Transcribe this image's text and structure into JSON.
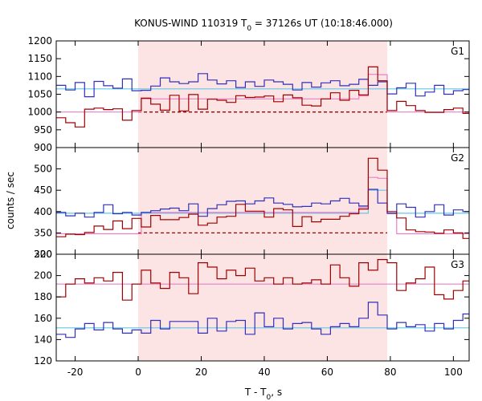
{
  "chart_data": {
    "type": "line",
    "title": {
      "prefix": "KONUS-WIND 110319 T",
      "sub": "0",
      "suffix": " = 37126s UT (10:18:46.000)"
    },
    "xlabel": {
      "prefix": "T - T",
      "sub": "0",
      "suffix": ", s"
    },
    "ylabel": "counts / sec",
    "xlim": [
      -26,
      105
    ],
    "x_ticks": [
      -20,
      0,
      20,
      40,
      60,
      80,
      100
    ],
    "shaded_interval": [
      0,
      79
    ],
    "colors": {
      "blue": "#3030b8",
      "red": "#a00000",
      "pink": "#e880c8",
      "cyan": "#60c8e8",
      "shade": "#fde4e4"
    },
    "panels": [
      {
        "name": "G1",
        "ylim": [
          900,
          1200
        ],
        "y_ticks": [
          900,
          950,
          1000,
          1050,
          1100,
          1150,
          1200
        ],
        "x_edges": [
          -26,
          -23,
          -20,
          -17,
          -14,
          -11,
          -8,
          -5,
          -2,
          1,
          4,
          7,
          10,
          13,
          16,
          19,
          22,
          25,
          28,
          31,
          34,
          37,
          40,
          43,
          46,
          49,
          52,
          55,
          58,
          61,
          64,
          67,
          70,
          73,
          76,
          79,
          82,
          85,
          88,
          91,
          94,
          97,
          100,
          103,
          105
        ],
        "series": [
          {
            "color": "blue",
            "values": [
              1075,
              1062,
              1083,
              1043,
              1086,
              1074,
              1067,
              1093,
              1060,
              1061,
              1073,
              1096,
              1085,
              1080,
              1085,
              1108,
              1090,
              1079,
              1088,
              1069,
              1085,
              1072,
              1090,
              1085,
              1078,
              1062,
              1083,
              1070,
              1082,
              1088,
              1074,
              1078,
              1092,
              1075,
              1085,
              1051,
              1068,
              1081,
              1045,
              1056,
              1075,
              1050,
              1060,
              1063
            ]
          },
          {
            "color": "red",
            "values": [
              984,
              970,
              958,
              1008,
              1011,
              1007,
              1009,
              977,
              1004,
              1039,
              1022,
              1005,
              1047,
              1003,
              1049,
              1008,
              1036,
              1033,
              1027,
              1046,
              1041,
              1042,
              1045,
              1029,
              1048,
              1040,
              1019,
              1017,
              1037,
              1054,
              1033,
              1061,
              1048,
              1127,
              1088,
              1004,
              1030,
              1018,
              1004,
              999,
              999,
              1007,
              1011,
              996
            ]
          },
          {
            "color": "pink",
            "values": [
              1000,
              1000,
              1000,
              1000,
              1000,
              1000,
              1000,
              1000,
              1000,
              1037,
              1037,
              1037,
              1037,
              1037,
              1037,
              1037,
              1037,
              1037,
              1037,
              1037,
              1037,
              1037,
              1037,
              1037,
              1037,
              1037,
              1037,
              1037,
              1037,
              1037,
              1037,
              1037,
              1045,
              1106,
              1105,
              1000,
              1000,
              1000,
              1000,
              1000,
              1000,
              1000,
              1000,
              1000
            ]
          },
          {
            "color": "cyan",
            "values": [
              1065,
              1065,
              1065,
              1065,
              1065,
              1065,
              1065,
              1065,
              1065,
              1065,
              1065,
              1065,
              1065,
              1065,
              1065,
              1065,
              1065,
              1065,
              1065,
              1065,
              1065,
              1065,
              1065,
              1065,
              1065,
              1065,
              1065,
              1065,
              1065,
              1065,
              1065,
              1065,
              1065,
              1065,
              1065,
              1065,
              1065,
              1065,
              1065,
              1065,
              1065,
              1065,
              1065,
              1065
            ]
          }
        ],
        "background_dashed": {
          "value": 1000,
          "x_range": [
            0,
            79
          ],
          "color": "red"
        }
      },
      {
        "name": "G2",
        "ylim": [
          300,
          550
        ],
        "y_ticks": [
          300,
          350,
          400,
          450,
          500
        ],
        "x_edges": [
          -26,
          -23,
          -20,
          -17,
          -14,
          -11,
          -8,
          -5,
          -2,
          1,
          4,
          7,
          10,
          13,
          16,
          19,
          22,
          25,
          28,
          31,
          34,
          37,
          40,
          43,
          46,
          49,
          52,
          55,
          58,
          61,
          64,
          67,
          70,
          73,
          76,
          79,
          82,
          85,
          88,
          91,
          94,
          97,
          100,
          103,
          105
        ],
        "series": [
          {
            "color": "blue",
            "values": [
              398,
              390,
              396,
              387,
              398,
              416,
              395,
              398,
              392,
              398,
              402,
              406,
              408,
              402,
              418,
              389,
              407,
              416,
              424,
              425,
              418,
              425,
              432,
              420,
              417,
              411,
              412,
              420,
              418,
              425,
              431,
              420,
              413,
              452,
              420,
              396,
              418,
              410,
              387,
              400,
              416,
              392,
              404,
              400
            ]
          },
          {
            "color": "red",
            "values": [
              341,
              347,
              346,
              351,
              366,
              358,
              378,
              360,
              384,
              364,
              391,
              381,
              381,
              386,
              394,
              368,
              373,
              387,
              389,
              417,
              401,
              401,
              387,
              407,
              404,
              365,
              388,
              376,
              382,
              382,
              389,
              395,
              406,
              525,
              497,
              400,
              385,
              357,
              353,
              352,
              349,
              357,
              350,
              337
            ]
          },
          {
            "color": "pink",
            "values": [
              348,
              348,
              348,
              348,
              348,
              348,
              348,
              348,
              348,
              398,
              398,
              398,
              398,
              398,
              398,
              398,
              398,
              398,
              398,
              398,
              398,
              398,
              398,
              398,
              398,
              398,
              398,
              398,
              398,
              398,
              398,
              398,
              410,
              480,
              478,
              395,
              348,
              348,
              348,
              348,
              348,
              348,
              348,
              348
            ]
          },
          {
            "color": "cyan",
            "values": [
              396,
              396,
              396,
              396,
              396,
              396,
              396,
              396,
              396,
              396,
              396,
              396,
              396,
              396,
              396,
              396,
              396,
              396,
              396,
              396,
              396,
              396,
              396,
              396,
              396,
              396,
              396,
              396,
              396,
              396,
              396,
              396,
              396,
              450,
              450,
              396,
              396,
              396,
              396,
              396,
              396,
              396,
              396,
              396
            ]
          }
        ],
        "background_dashed": {
          "value": 350,
          "x_range": [
            0,
            79
          ],
          "color": "red"
        }
      },
      {
        "name": "G3",
        "ylim": [
          120,
          220
        ],
        "y_ticks": [
          120,
          140,
          160,
          180,
          200,
          220
        ],
        "x_edges": [
          -26,
          -23,
          -20,
          -17,
          -14,
          -11,
          -8,
          -5,
          -2,
          1,
          4,
          7,
          10,
          13,
          16,
          19,
          22,
          25,
          28,
          31,
          34,
          37,
          40,
          43,
          46,
          49,
          52,
          55,
          58,
          61,
          64,
          67,
          70,
          73,
          76,
          79,
          82,
          85,
          88,
          91,
          94,
          97,
          100,
          103,
          105
        ],
        "series": [
          {
            "color": "blue",
            "values": [
              145,
              142,
              150,
              155,
              149,
              156,
              150,
              146,
              149,
              146,
              158,
              150,
              157,
              157,
              157,
              146,
              160,
              148,
              157,
              158,
              145,
              165,
              152,
              160,
              150,
              155,
              156,
              150,
              145,
              152,
              155,
              152,
              160,
              175,
              163,
              150,
              156,
              152,
              154,
              148,
              155,
              150,
              158,
              164
            ]
          },
          {
            "color": "red",
            "values": [
              180,
              192,
              197,
              193,
              198,
              195,
              203,
              177,
              192,
              205,
              193,
              188,
              203,
              198,
              183,
              212,
              208,
              197,
              205,
              200,
              207,
              195,
              198,
              192,
              198,
              192,
              193,
              196,
              192,
              210,
              198,
              190,
              212,
              205,
              215,
              212,
              186,
              193,
              197,
              208,
              182,
              178,
              186,
              195
            ]
          },
          {
            "color": "pink",
            "values": [
              192,
              192,
              192,
              192,
              192,
              192,
              192,
              192,
              192,
              192,
              192,
              192,
              192,
              192,
              192,
              192,
              192,
              192,
              192,
              192,
              192,
              192,
              192,
              192,
              192,
              192,
              192,
              192,
              192,
              192,
              192,
              192,
              192,
              192,
              192,
              192,
              192,
              192,
              192,
              192,
              192,
              192,
              192,
              192
            ]
          },
          {
            "color": "cyan",
            "values": [
              151,
              151,
              151,
              151,
              151,
              151,
              151,
              151,
              151,
              151,
              151,
              151,
              151,
              151,
              151,
              151,
              151,
              151,
              151,
              151,
              151,
              151,
              151,
              151,
              151,
              151,
              151,
              151,
              151,
              151,
              151,
              151,
              151,
              151,
              151,
              151,
              151,
              151,
              151,
              151,
              151,
              151,
              151,
              151
            ]
          }
        ],
        "background_dashed": null
      }
    ]
  }
}
